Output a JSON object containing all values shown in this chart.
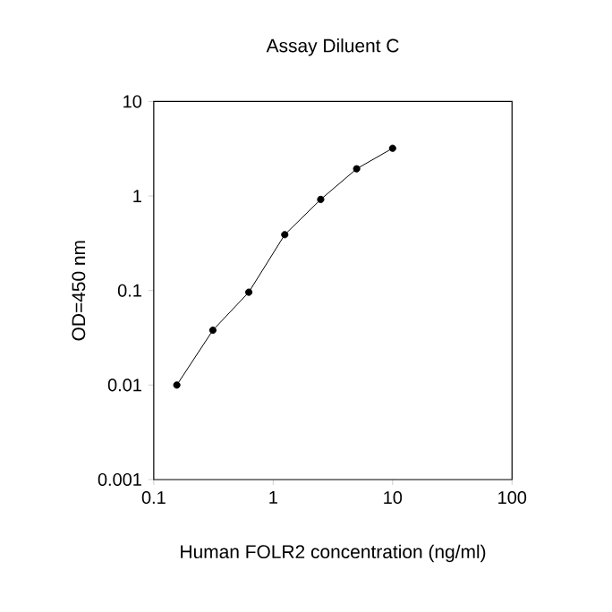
{
  "chart_data": {
    "type": "line",
    "title": "Assay Diluent C",
    "xlabel": "Human FOLR2 concentration (ng/ml)",
    "ylabel": "OD=450 nm",
    "log": "xy",
    "marker": "circle",
    "line_style": "solid",
    "grid": false,
    "x": [
      0.156,
      0.3125,
      0.625,
      1.25,
      2.5,
      5,
      10
    ],
    "series": [
      {
        "color": "#000000",
        "values": [
          0.01,
          0.038,
          0.096,
          0.39,
          0.92,
          1.94,
          3.2
        ]
      }
    ],
    "xlim": [
      0.1,
      100
    ],
    "xticks": [
      0.1,
      1,
      10,
      100
    ],
    "ylim": [
      0.001,
      10
    ],
    "yticks": [
      0.001,
      0.01,
      0.1,
      1,
      10
    ]
  }
}
